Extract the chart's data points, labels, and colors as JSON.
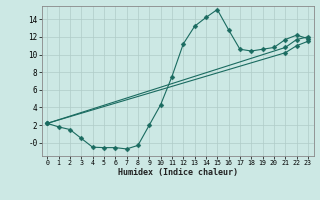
{
  "title": "",
  "xlabel": "Humidex (Indice chaleur)",
  "bg_color": "#cce8e4",
  "line_color": "#1a6b60",
  "grid_color": "#b0ccc8",
  "xlim": [
    -0.5,
    23.5
  ],
  "ylim": [
    -1.5,
    15.5
  ],
  "xticks": [
    0,
    1,
    2,
    3,
    4,
    5,
    6,
    7,
    8,
    9,
    10,
    11,
    12,
    13,
    14,
    15,
    16,
    17,
    18,
    19,
    20,
    21,
    22,
    23
  ],
  "yticks": [
    0,
    2,
    4,
    6,
    8,
    10,
    12,
    14
  ],
  "ytick_labels": [
    "-0",
    "2",
    "4",
    "6",
    "8",
    "10",
    "12",
    "14"
  ],
  "line1_x": [
    0,
    1,
    2,
    3,
    4,
    5,
    6,
    7,
    8,
    9,
    10,
    11,
    12,
    13,
    14,
    15,
    16,
    17,
    18,
    19,
    20,
    21,
    22,
    23
  ],
  "line1_y": [
    2.2,
    1.8,
    1.5,
    0.5,
    -0.5,
    -0.55,
    -0.55,
    -0.7,
    -0.3,
    2.0,
    4.3,
    7.5,
    11.2,
    13.2,
    14.2,
    15.1,
    12.8,
    10.6,
    10.4,
    10.6,
    10.8,
    11.7,
    12.2,
    11.8
  ],
  "line2_x": [
    0,
    21,
    22,
    23
  ],
  "line2_y": [
    2.2,
    10.8,
    11.7,
    12.0
  ],
  "line3_x": [
    0,
    21,
    22,
    23
  ],
  "line3_y": [
    2.2,
    10.2,
    11.0,
    11.5
  ],
  "markersize": 2.5
}
